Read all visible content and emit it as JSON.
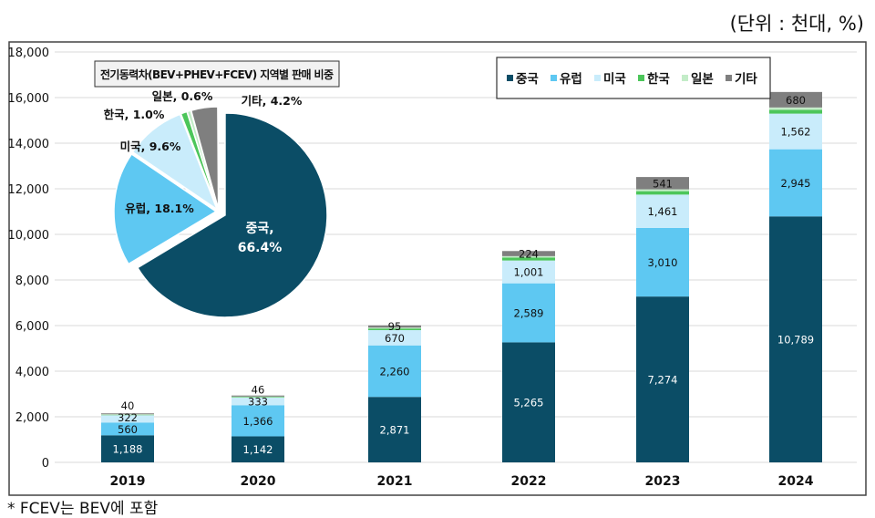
{
  "unit_label": "(단위 : 천대, %)",
  "footnote": "* FCEV는 BEV에 포함",
  "chart_data": [
    {
      "type": "bar",
      "stacked": true,
      "categories": [
        "2019",
        "2020",
        "2021",
        "2022",
        "2023",
        "2024"
      ],
      "ylim": [
        0,
        18000
      ],
      "yticks": [
        "0",
        "2,000",
        "4,000",
        "6,000",
        "8,000",
        "10,000",
        "12,000",
        "14,000",
        "16,000",
        "18,000"
      ],
      "grid": true,
      "legend": "top-right",
      "series": [
        {
          "name": "중국",
          "color": "#0b4d66",
          "values": [
            1188,
            1142,
            2871,
            5265,
            7274,
            10789
          ],
          "labels": [
            "1,188",
            "1,142",
            "2,871",
            "5,265",
            "7,274",
            "10,789"
          ]
        },
        {
          "name": "유럽",
          "color": "#5ec8f2",
          "values": [
            560,
            1366,
            2260,
            2589,
            3010,
            2945
          ],
          "labels": [
            "560",
            "1,366",
            "2,260",
            "2,589",
            "3,010",
            "2,945"
          ]
        },
        {
          "name": "미국",
          "color": "#c9ecfb",
          "values": [
            322,
            333,
            670,
            1001,
            1461,
            1562
          ],
          "labels": [
            "322",
            "333",
            "670",
            "1,001",
            "1,461",
            "1,562"
          ]
        },
        {
          "name": "한국",
          "color": "#4cc65a",
          "values": [
            20,
            25,
            70,
            130,
            150,
            170
          ],
          "labels": [
            "",
            "",
            "",
            "",
            "",
            ""
          ]
        },
        {
          "name": "일본",
          "color": "#c3ecc8",
          "values": [
            20,
            20,
            40,
            60,
            80,
            100
          ],
          "labels": [
            "",
            "",
            "",
            "",
            "",
            ""
          ]
        },
        {
          "name": "기타",
          "color": "#7f7f7f",
          "values": [
            40,
            46,
            95,
            224,
            541,
            680
          ],
          "labels": [
            "40",
            "46",
            "95",
            "224",
            "541",
            "680"
          ]
        }
      ]
    },
    {
      "type": "pie",
      "title": "전기동력차(BEV+PHEV+FCEV) 지역별 판매 비중",
      "slices": [
        {
          "name": "중국",
          "value": 66.4,
          "label": "중국,",
          "pct": "66.4%",
          "color": "#0b4d66"
        },
        {
          "name": "유럽",
          "value": 18.1,
          "label": "유럽, 18.1%",
          "color": "#5ec8f2"
        },
        {
          "name": "미국",
          "value": 9.6,
          "label": "미국, 9.6%",
          "color": "#c9ecfb"
        },
        {
          "name": "한국",
          "value": 1.0,
          "label": "한국, 1.0%",
          "color": "#4cc65a"
        },
        {
          "name": "일본",
          "value": 0.6,
          "label": "일본, 0.6%",
          "color": "#c3ecc8"
        },
        {
          "name": "기타",
          "value": 4.2,
          "label": "기타, 4.2%",
          "color": "#7f7f7f"
        }
      ]
    }
  ]
}
